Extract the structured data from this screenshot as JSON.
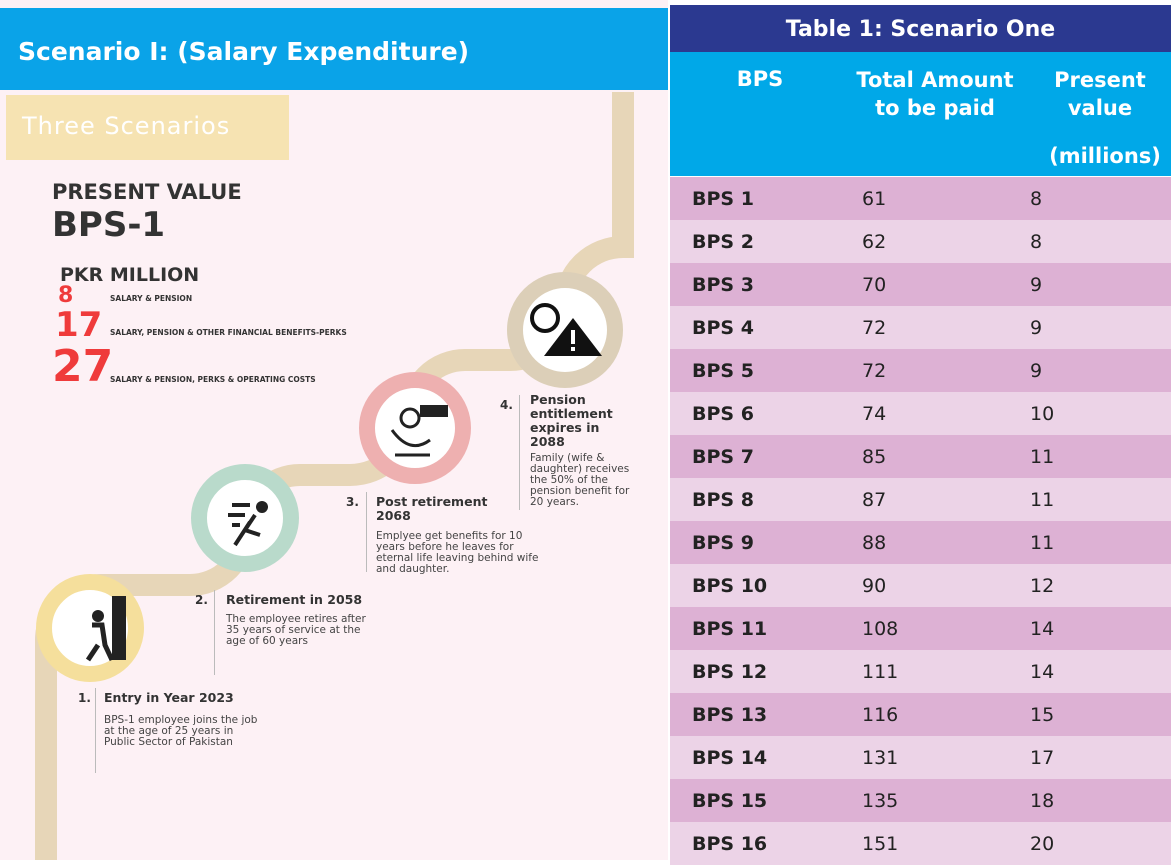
{
  "header": {
    "title": "Scenario I: (Salary Expenditure)"
  },
  "infographic": {
    "badge": "Three Scenarios",
    "heading": "PRESENT VALUE",
    "subheading": "BPS-1",
    "unit": "PKR MILLION",
    "figures": [
      {
        "value": "8",
        "label": "SALARY & PENSION"
      },
      {
        "value": "17",
        "label": "SALARY, PENSION & OTHER FINANCIAL BENEFITS-PERKS"
      },
      {
        "value": "27",
        "label": "SALARY & PENSION, PERKS & OPERATING COSTS"
      }
    ],
    "steps": [
      {
        "number": "1.",
        "title": "Entry in Year 2023",
        "text": "BPS-1 employee joins the job at the age of 25 years in Public Sector of Pakistan"
      },
      {
        "number": "2.",
        "title": "Retirement in 2058",
        "text": "The employee retires after 35 years of service at the age of 60 years"
      },
      {
        "number": "3.",
        "title": "Post retirement 2068",
        "text": "Emplyee get benefits for 10 years before he leaves for eternal life leaving behind wife and daughter."
      },
      {
        "number": "4.",
        "title": "Pension entitlement expires in 2088",
        "text": "Family (wife & daughter) receives the 50% of the pension benefit for 20 years."
      }
    ]
  },
  "table": {
    "title": "Table 1: Scenario One",
    "headers": [
      "BPS",
      "Total Amount to be paid",
      "Present value"
    ],
    "subheader": "(millions)",
    "rows": [
      [
        "BPS 1",
        61,
        8
      ],
      [
        "BPS 2",
        62,
        8
      ],
      [
        "BPS 3",
        70,
        9
      ],
      [
        "BPS 4",
        72,
        9
      ],
      [
        "BPS 5",
        72,
        9
      ],
      [
        "BPS 6",
        74,
        10
      ],
      [
        "BPS 7",
        85,
        11
      ],
      [
        "BPS 8",
        87,
        11
      ],
      [
        "BPS 9",
        88,
        11
      ],
      [
        "BPS 10",
        90,
        12
      ],
      [
        "BPS 11",
        108,
        14
      ],
      [
        "BPS 12",
        111,
        14
      ],
      [
        "BPS 13",
        116,
        15
      ],
      [
        "BPS 14",
        131,
        17
      ],
      [
        "BPS 15",
        135,
        18
      ],
      [
        "BPS 16",
        151,
        20
      ]
    ]
  }
}
